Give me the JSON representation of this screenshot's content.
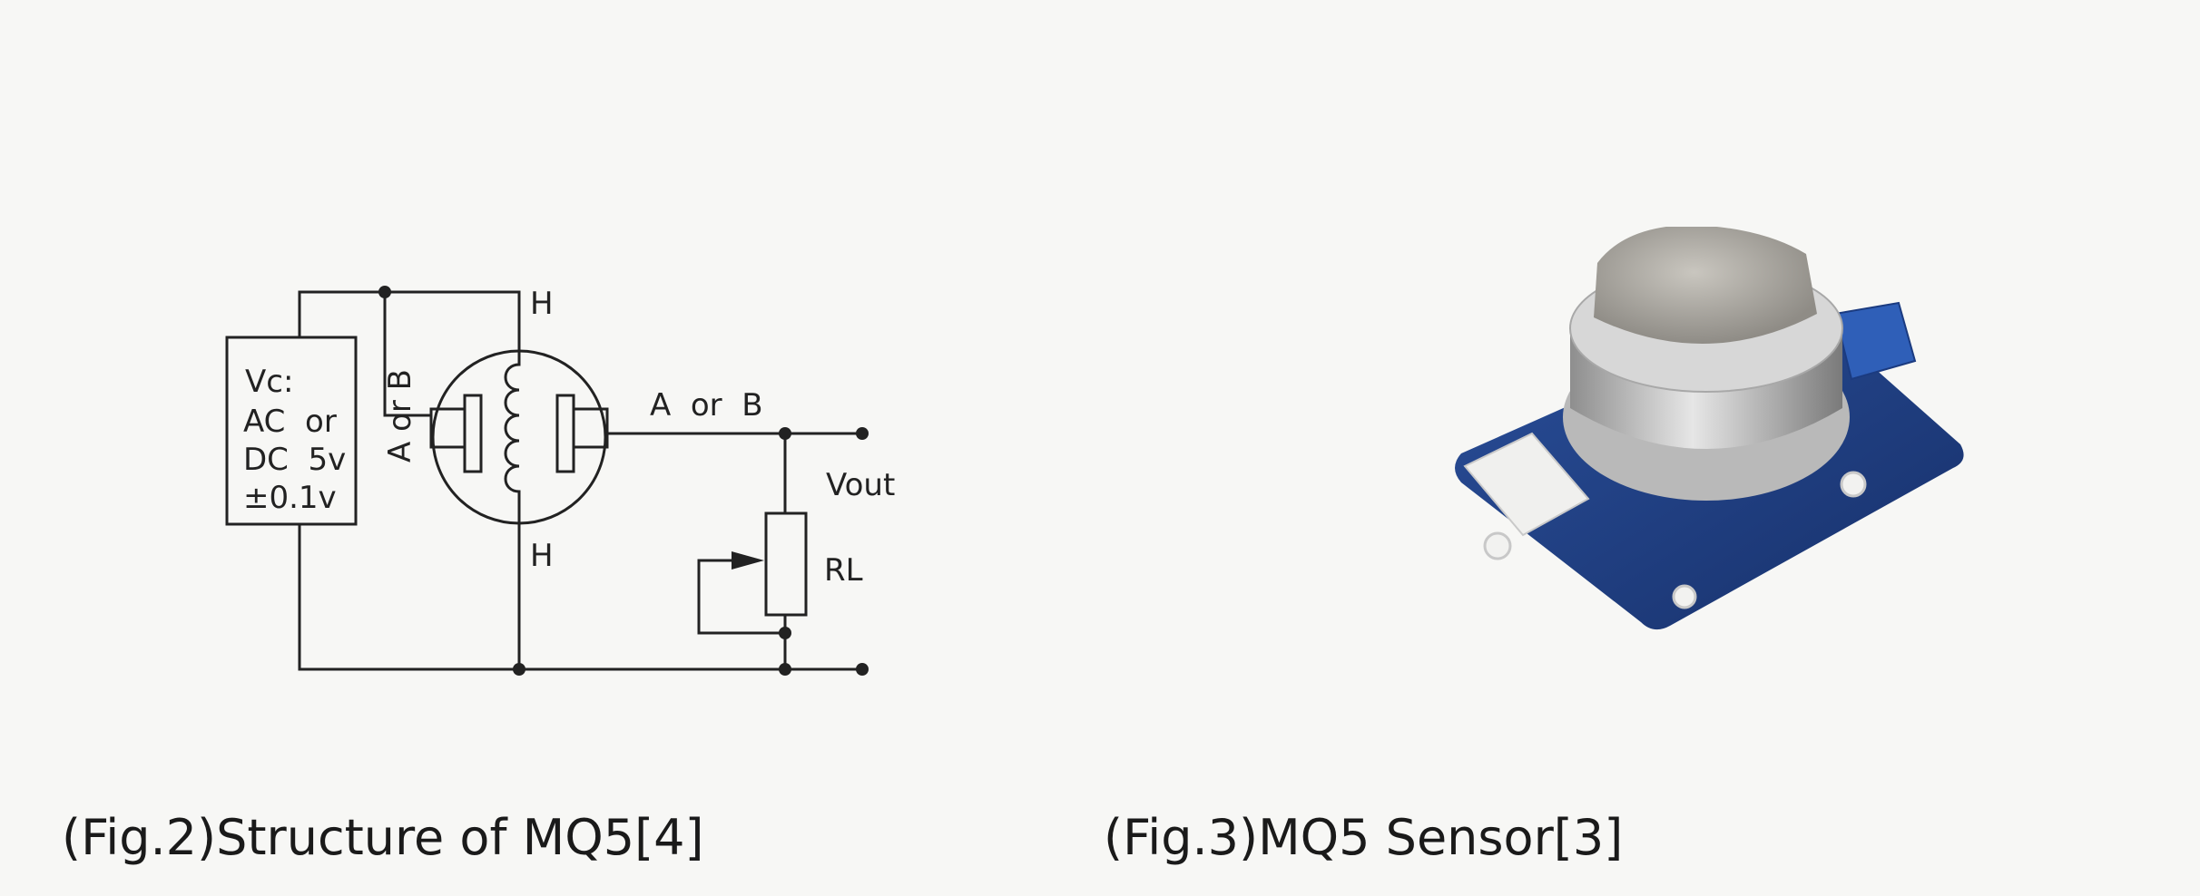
{
  "figure2": {
    "labels": {
      "heater_top": "H",
      "heater_bottom": "H",
      "supply_line1": "Vc:",
      "supply_line2": "AC  or",
      "supply_line3": "DC  5v",
      "supply_line4": "±0.1v",
      "electrode_left": "A or B",
      "electrode_right": "A  or  B",
      "output": "Vout",
      "load_resistor": "RL"
    },
    "caption": "(Fig.2)Structure of MQ5[4]"
  },
  "figure3": {
    "caption": "(Fig.3)MQ5 Sensor[3]"
  }
}
